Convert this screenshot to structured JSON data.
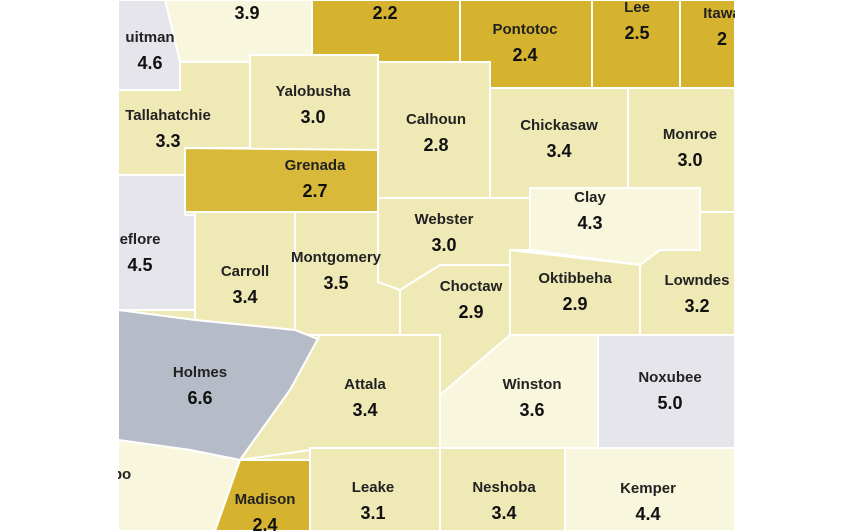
{
  "counties": [
    {
      "value": "3.9"
    },
    {
      "value": "2.2"
    },
    {
      "name": "Pontotoc",
      "value": "2.4"
    },
    {
      "name": "Lee",
      "value": "2.5"
    },
    {
      "name": "Itawa",
      "value": "2"
    },
    {
      "name": "uitman",
      "value": "4.6"
    },
    {
      "name": "Yalobusha",
      "value": "3.0"
    },
    {
      "name": "Tallahatchie",
      "value": "3.3"
    },
    {
      "name": "Calhoun",
      "value": "2.8"
    },
    {
      "name": "Chickasaw",
      "value": "3.4"
    },
    {
      "name": "Monroe",
      "value": "3.0"
    },
    {
      "name": "Grenada",
      "value": "2.7"
    },
    {
      "name": "Clay",
      "value": "4.3"
    },
    {
      "name": "eflore",
      "value": "4.5"
    },
    {
      "name": "Webster",
      "value": "3.0"
    },
    {
      "name": "Carroll",
      "value": "3.4"
    },
    {
      "name": "Montgomery",
      "value": "3.5"
    },
    {
      "name": "Oktibbeha",
      "value": "2.9"
    },
    {
      "name": "Choctaw",
      "value": "2.9"
    },
    {
      "name": "Lowndes",
      "value": "3.2"
    },
    {
      "name": "Holmes",
      "value": "6.6"
    },
    {
      "name": "Attala",
      "value": "3.4"
    },
    {
      "name": "Winston",
      "value": "3.6"
    },
    {
      "name": "Noxubee",
      "value": "5.0"
    },
    {
      "name": "bo"
    },
    {
      "name": "Madison",
      "value": "2.4"
    },
    {
      "name": "Leake",
      "value": "3.1"
    },
    {
      "name": "Neshoba",
      "value": "3.4"
    },
    {
      "name": "Kemper",
      "value": "4.4"
    }
  ]
}
